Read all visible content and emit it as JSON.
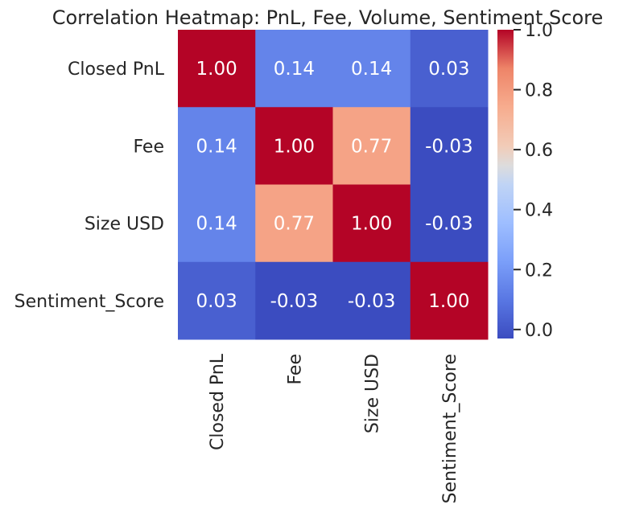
{
  "chart_data": {
    "type": "heatmap",
    "title": "Correlation Heatmap: PnL, Fee, Volume, Sentiment Score",
    "xlabel": "",
    "ylabel": "",
    "rows": [
      "Closed PnL",
      "Fee",
      "Size USD",
      "Sentiment_Score"
    ],
    "columns": [
      "Closed PnL",
      "Fee",
      "Size USD",
      "Sentiment_Score"
    ],
    "values": [
      [
        1.0,
        0.14,
        0.14,
        0.03
      ],
      [
        0.14,
        1.0,
        0.77,
        -0.03
      ],
      [
        0.14,
        0.77,
        1.0,
        -0.03
      ],
      [
        0.03,
        -0.03,
        -0.03,
        1.0
      ]
    ],
    "annotations": [
      [
        "1.00",
        "0.14",
        "0.14",
        "0.03"
      ],
      [
        "0.14",
        "1.00",
        "0.77",
        "-0.03"
      ],
      [
        "0.14",
        "0.77",
        "1.00",
        "-0.03"
      ],
      [
        "0.03",
        "-0.03",
        "-0.03",
        "1.00"
      ]
    ],
    "colorbar": {
      "colormap": "coolwarm",
      "range": [
        -0.03,
        1.0
      ],
      "ticks": [
        0.0,
        0.2,
        0.4,
        0.6,
        0.8,
        1.0
      ],
      "tick_labels": [
        "0.0",
        "0.2",
        "0.4",
        "0.6",
        "0.8",
        "1.0"
      ]
    },
    "grid": false,
    "legend": "colorbar-right"
  }
}
